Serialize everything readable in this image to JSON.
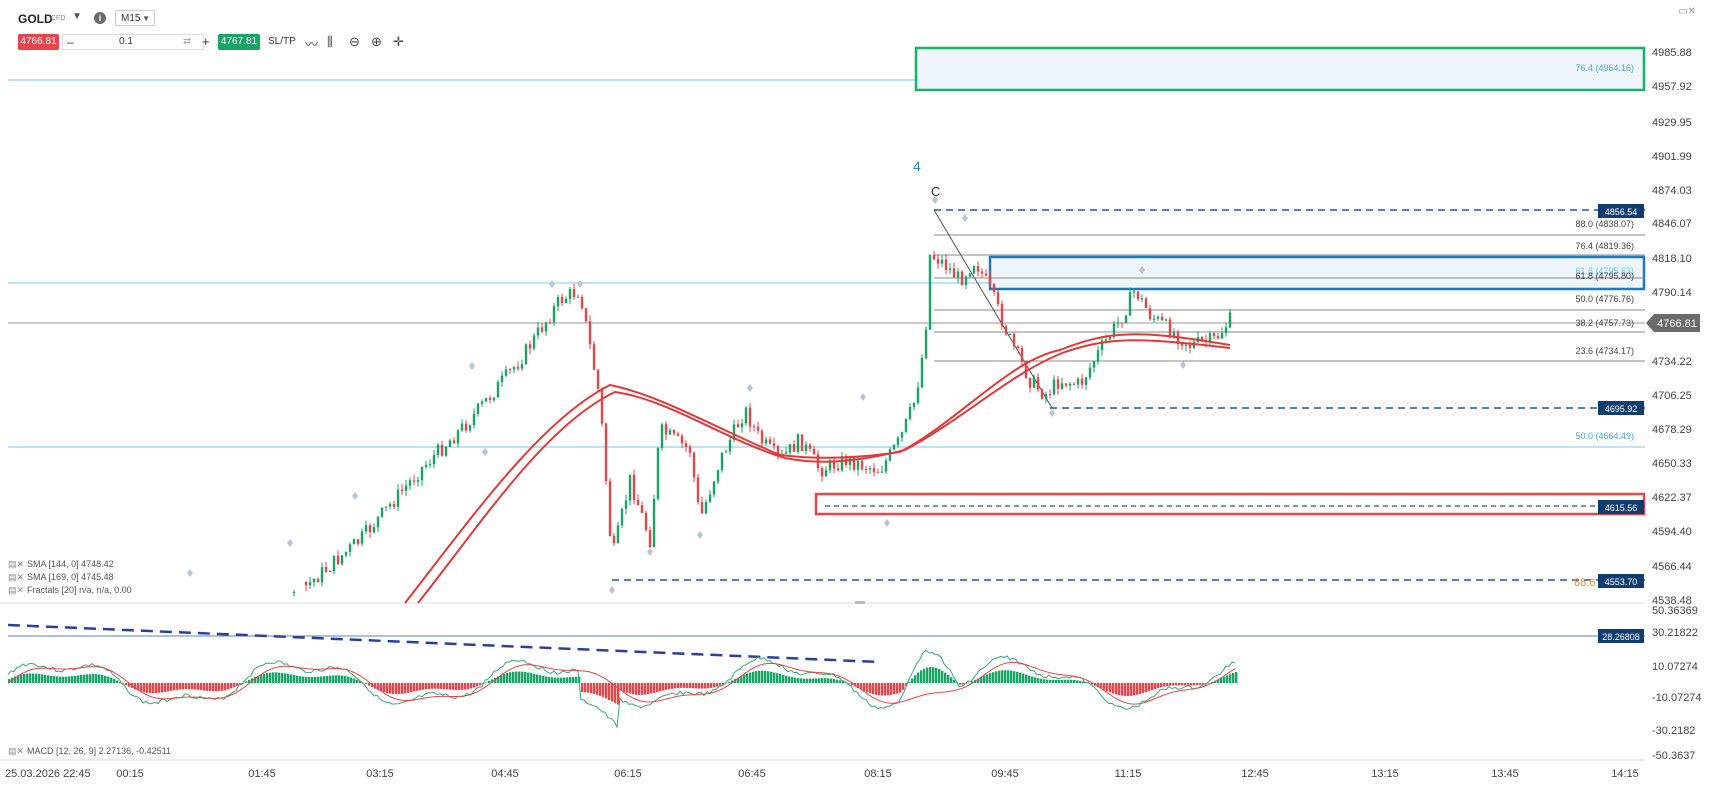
{
  "toolbar": {
    "symbol": "GOLD",
    "symbol_suffix": "CFD",
    "timeframe": "M15",
    "sell_price": "4766.81",
    "quantity": "0.1",
    "buy_price": "4767.81",
    "sltp_label": "SL/TP",
    "icons": [
      "line-chart-icon",
      "candles-icon",
      "zoom-out-icon",
      "zoom-in-icon",
      "crosshair-icon"
    ]
  },
  "price_axis": {
    "ticks": [
      "4985.88",
      "4957.92",
      "4929.95",
      "4901.99",
      "4874.03",
      "4846.07",
      "4818.10",
      "4790.14",
      "4766.81",
      "4734.22",
      "4706.25",
      "4678.29",
      "4650.33",
      "4622.37",
      "4594.40",
      "4566.44",
      "4538.48"
    ],
    "current_price": "4766.81"
  },
  "price_badges": [
    "4856.54",
    "4695.92",
    "4615.56",
    "4553.70"
  ],
  "macd_axis": {
    "ticks": [
      "50.36369",
      "30.21822",
      "10.07274",
      "-10.07274",
      "-30.2182",
      "-50.3637"
    ],
    "level_badge": "28.26808"
  },
  "time_axis": {
    "ticks": [
      "25.03.2026 22:45",
      "00:15",
      "01:45",
      "03:15",
      "04:45",
      "06:15",
      "06:45",
      "08:15",
      "09:45",
      "11:15",
      "12:45",
      "13:15",
      "13:45",
      "14:15"
    ]
  },
  "fib_labels": [
    "88.0 (4838.07)",
    "76.4 (4819.36)",
    "61.8 (4795.63)",
    "61.8 (4795.80)",
    "50.0 (4776.76)",
    "38.2 (4757.73)",
    "23.6 (4734.17)",
    "76.4 (4964.16)",
    "50.0 (4664.49)"
  ],
  "wave_labels": {
    "wave4": "4",
    "waveC": "C",
    "orange_partial": "88.6"
  },
  "indicators": {
    "sma144": "SMA [144, 0] 4748.42",
    "sma169": "SMA [169, 0] 4745.48",
    "fractals": "Fractals [20] n/a, n/a, 0.00",
    "macd": "MACD [12, 26, 9] 2.27136, -0.42511"
  },
  "colors": {
    "up": "#17a467",
    "down": "#e8454a",
    "sma": "#e03a3a",
    "hline_light": "#7cc4ee",
    "dash_blue": "#1e5a9a",
    "badge_navy": "#0f3d70",
    "box_green": "#18b26b",
    "box_blue": "#1a7bc0",
    "box_red": "#e8454a",
    "macd_dash": "#2c3fa0"
  }
}
